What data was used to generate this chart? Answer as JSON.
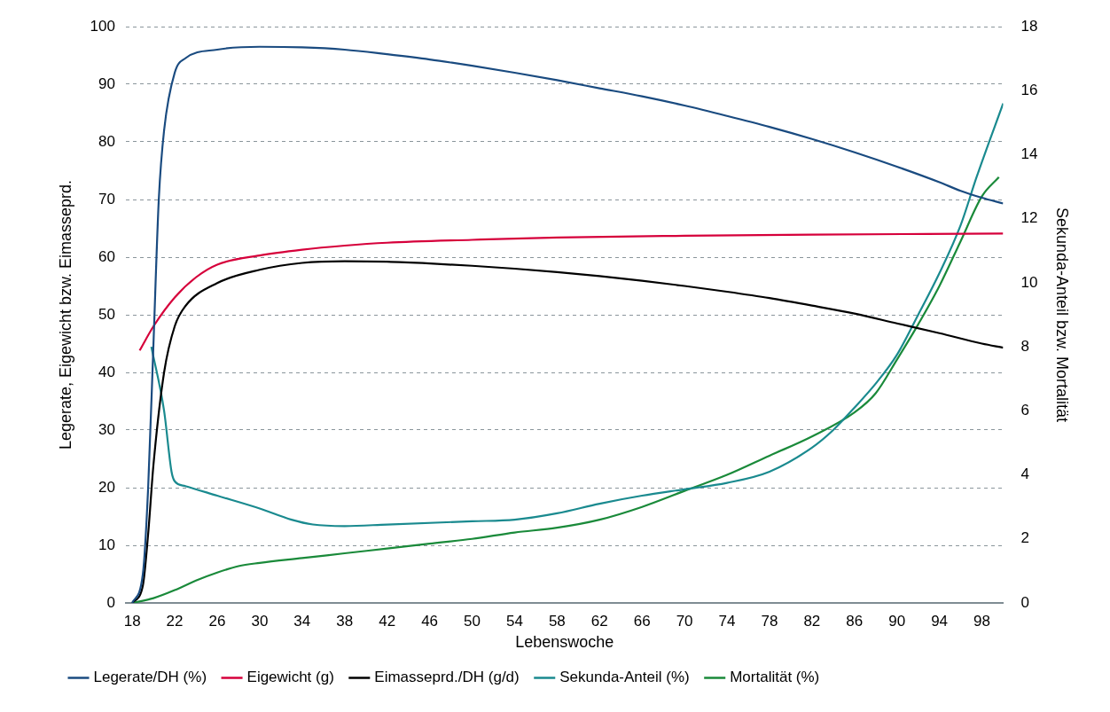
{
  "chart_data": {
    "type": "line",
    "xlabel": "Lebenswoche",
    "ylabel": "Legerate, Eigewicht bzw. Eimasseprd.",
    "y2label": "Sekunda-Anteil bzw. Mortalität",
    "xlim": [
      17.4,
      100
    ],
    "xticks": [
      18,
      22,
      26,
      30,
      34,
      38,
      42,
      46,
      50,
      54,
      58,
      62,
      66,
      70,
      74,
      78,
      82,
      86,
      90,
      94,
      98
    ],
    "ylim": [
      0,
      100
    ],
    "yticks": [
      0,
      10,
      20,
      30,
      40,
      50,
      60,
      70,
      80,
      90,
      100
    ],
    "y2lim": [
      0,
      18
    ],
    "y2ticks": [
      0,
      2,
      4,
      6,
      8,
      10,
      12,
      14,
      16,
      18
    ],
    "grid": "y",
    "legend": "bottom",
    "marker": "none",
    "line_style": "solid",
    "series": [
      {
        "name": "Legerate/DH (%)",
        "color": "#1a4b80",
        "x": [
          18,
          19,
          19.5,
          20,
          20.5,
          21,
          22,
          23,
          26,
          30,
          34,
          38,
          42,
          46,
          50,
          54,
          58,
          62,
          66,
          70,
          74,
          78,
          82,
          86,
          90,
          94,
          96,
          98,
          100
        ],
        "values": [
          0,
          5,
          20,
          45,
          70,
          82,
          92,
          94.5,
          96,
          96.5,
          96.4,
          96,
          95.2,
          94.3,
          93.2,
          92,
          90.7,
          89.3,
          87.9,
          86.3,
          84.5,
          82.6,
          80.5,
          78.2,
          75.7,
          73,
          71.5,
          70.3,
          69.3
        ]
      },
      {
        "name": "Eigewicht (g)",
        "color": "#d6003b",
        "x": [
          18.7,
          20,
          22,
          24,
          26,
          30,
          34,
          38,
          42,
          50,
          58,
          70,
          82,
          100
        ],
        "values": [
          43.8,
          48,
          53,
          56.5,
          58.7,
          60.3,
          61.3,
          62,
          62.5,
          63,
          63.4,
          63.7,
          63.9,
          64.1
        ]
      },
      {
        "name": "Eimasseprd./DH (g/d)",
        "color": "#000000",
        "x": [
          18,
          19,
          19.5,
          20,
          21,
          22,
          23,
          26,
          30,
          34,
          38,
          42,
          46,
          50,
          54,
          58,
          62,
          66,
          70,
          74,
          78,
          82,
          86,
          90,
          94,
          98,
          100
        ],
        "values": [
          0,
          3,
          12,
          24,
          40,
          48,
          51.5,
          55.5,
          57.8,
          59,
          59.3,
          59.2,
          58.9,
          58.5,
          58,
          57.4,
          56.7,
          55.9,
          55,
          54,
          52.9,
          51.6,
          50.2,
          48.5,
          46.8,
          45,
          44.3
        ]
      },
      {
        "name": "Sekunda-Anteil (%)",
        "color": "#1a8a8f",
        "axis": "y2",
        "x": [
          19.8,
          21,
          21.7,
          22,
          23,
          26,
          30,
          33,
          35,
          38,
          42,
          50,
          54,
          58,
          62,
          66,
          70,
          74,
          78,
          82,
          84,
          86,
          88,
          90,
          92,
          94,
          96,
          97.5,
          100
        ],
        "values": [
          8,
          6,
          4.1,
          3.8,
          3.65,
          3.35,
          2.95,
          2.6,
          2.45,
          2.4,
          2.45,
          2.55,
          2.6,
          2.8,
          3.1,
          3.35,
          3.55,
          3.75,
          4.1,
          4.85,
          5.4,
          6.1,
          6.85,
          7.75,
          9,
          10.3,
          11.8,
          13.3,
          15.6
        ]
      },
      {
        "name": "Mortalität (%)",
        "color": "#1a8a3a",
        "axis": "y2",
        "x": [
          18,
          20,
          22,
          24,
          26,
          28,
          30,
          34,
          38,
          42,
          46,
          50,
          54,
          58,
          62,
          66,
          70,
          74,
          78,
          82,
          86,
          88,
          90,
          92,
          94,
          96,
          98,
          99.6
        ],
        "values": [
          0,
          0.15,
          0.4,
          0.7,
          0.95,
          1.15,
          1.25,
          1.4,
          1.55,
          1.7,
          1.85,
          2,
          2.2,
          2.35,
          2.6,
          3,
          3.5,
          4,
          4.6,
          5.2,
          5.95,
          6.55,
          7.6,
          8.7,
          9.9,
          11.3,
          12.7,
          13.3
        ]
      }
    ]
  }
}
